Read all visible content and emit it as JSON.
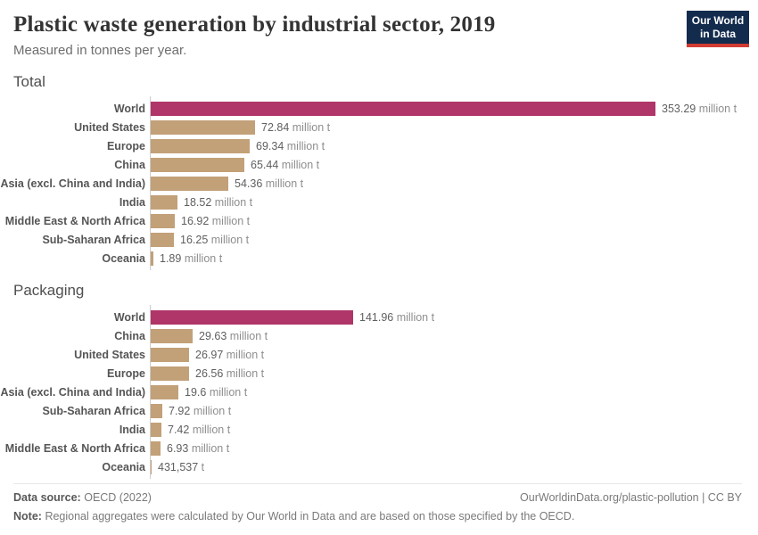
{
  "header": {
    "title": "Plastic waste generation by industrial sector, 2019",
    "subtitle": "Measured in tonnes per year."
  },
  "logo": {
    "line1": "Our World",
    "line2": "in Data"
  },
  "colors": {
    "world_bar": "#b03568",
    "region_bar": "#c2a078",
    "axis_line": "#cccccc",
    "logo_bg": "#132c4e",
    "logo_stripe": "#d13b32"
  },
  "chart_data": [
    {
      "type": "bar",
      "orientation": "horizontal",
      "section": "Total",
      "unit": "million t",
      "highlight_category": "World",
      "legend_position": "none",
      "grid": false,
      "xlim": [
        0,
        353.29
      ],
      "categories": [
        "World",
        "United States",
        "Europe",
        "China",
        "Asia (excl. China and India)",
        "India",
        "Middle East & North Africa",
        "Sub-Saharan Africa",
        "Oceania"
      ],
      "values": [
        353.29,
        72.84,
        69.34,
        65.44,
        54.36,
        18.52,
        16.92,
        16.25,
        1.89
      ],
      "value_labels": [
        "353.29 million t",
        "72.84 million t",
        "69.34 million t",
        "65.44 million t",
        "54.36 million t",
        "18.52 million t",
        "16.92 million t",
        "16.25 million t",
        "1.89 million t"
      ]
    },
    {
      "type": "bar",
      "orientation": "horizontal",
      "section": "Packaging",
      "unit": "million t",
      "highlight_category": "World",
      "legend_position": "none",
      "grid": false,
      "xlim": [
        0,
        353.29
      ],
      "categories": [
        "World",
        "China",
        "United States",
        "Europe",
        "Asia (excl. China and India)",
        "Sub-Saharan Africa",
        "India",
        "Middle East & North Africa",
        "Oceania"
      ],
      "values": [
        141.96,
        29.63,
        26.97,
        26.56,
        19.6,
        7.92,
        7.42,
        6.93,
        0.431537
      ],
      "value_labels": [
        "141.96 million t",
        "29.63 million t",
        "26.97 million t",
        "26.56 million t",
        "19.6 million t",
        "7.92 million t",
        "7.42 million t",
        "6.93 million t",
        "431,537 t"
      ]
    }
  ],
  "footer": {
    "datasource_label": "Data source:",
    "datasource_value": "OECD (2022)",
    "attribution": "OurWorldinData.org/plastic-pollution | CC BY",
    "note_label": "Note:",
    "note_text": "Regional aggregates were calculated by Our World in Data and are based on those specified by the OECD."
  }
}
